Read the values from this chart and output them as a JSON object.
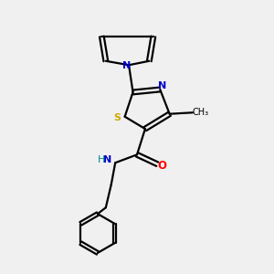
{
  "background_color": "#f0f0f0",
  "bond_color": "#000000",
  "N_color": "#0000cc",
  "S_color": "#ccaa00",
  "O_color": "#ff0000",
  "NH_color": "#008888",
  "figsize": [
    3.0,
    3.0
  ],
  "dpi": 100,
  "xlim": [
    0,
    10
  ],
  "ylim": [
    0,
    10
  ]
}
